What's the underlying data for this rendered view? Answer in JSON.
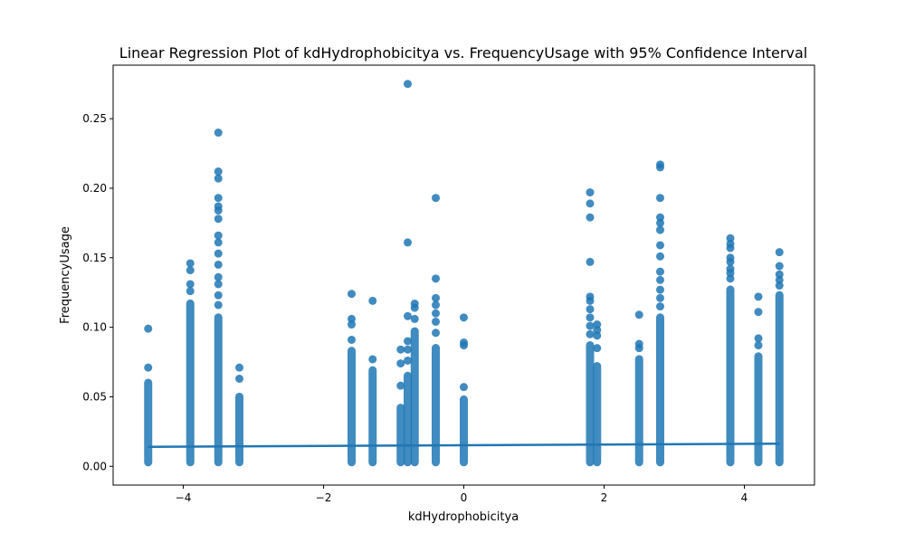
{
  "chart_data": {
    "type": "scatter",
    "title": "Linear Regression Plot of kdHydrophobicitya vs. FrequencyUsage with 95% Confidence Interval",
    "xlabel": "kdHydrophobicitya",
    "ylabel": "FrequencyUsage",
    "xlim": [
      -5.0,
      5.0
    ],
    "ylim": [
      -0.0135,
      0.2885
    ],
    "grid": false,
    "legend": "none",
    "x_ticks": [
      -4,
      -2,
      0,
      2,
      4
    ],
    "x_tick_labels": [
      "−4",
      "−2",
      "0",
      "2",
      "4"
    ],
    "y_ticks": [
      0.0,
      0.05,
      0.1,
      0.15,
      0.2,
      0.25
    ],
    "y_tick_labels": [
      "0.00",
      "0.05",
      "0.10",
      "0.15",
      "0.20",
      "0.25"
    ],
    "point_color": "#1f77b4",
    "columns": [
      {
        "x": -4.5,
        "dense_max": 0.063,
        "outliers": [
          0.071,
          0.099
        ]
      },
      {
        "x": -3.9,
        "dense_max": 0.12,
        "outliers": [
          0.126,
          0.131,
          0.141,
          0.146
        ]
      },
      {
        "x": -3.5,
        "dense_max": 0.11,
        "outliers": [
          0.116,
          0.123,
          0.131,
          0.136,
          0.145,
          0.153,
          0.161,
          0.166,
          0.178,
          0.184,
          0.187,
          0.193,
          0.207,
          0.212,
          0.24
        ]
      },
      {
        "x": -3.2,
        "dense_max": 0.053,
        "outliers": [
          0.063,
          0.071
        ]
      },
      {
        "x": -1.6,
        "dense_max": 0.086,
        "outliers": [
          0.091,
          0.102,
          0.106,
          0.124
        ]
      },
      {
        "x": -1.3,
        "dense_max": 0.072,
        "outliers": [
          0.077,
          0.119
        ]
      },
      {
        "x": -0.9,
        "dense_max": 0.045,
        "outliers": [
          0.058,
          0.074,
          0.084
        ]
      },
      {
        "x": -0.8,
        "dense_max": 0.068,
        "outliers": [
          0.076,
          0.084,
          0.09,
          0.108,
          0.161,
          0.275
        ]
      },
      {
        "x": -0.7,
        "dense_max": 0.1,
        "outliers": [
          0.106,
          0.114,
          0.117
        ]
      },
      {
        "x": -0.4,
        "dense_max": 0.088,
        "outliers": [
          0.096,
          0.104,
          0.11,
          0.116,
          0.121,
          0.135,
          0.193
        ]
      },
      {
        "x": 0.0,
        "dense_max": 0.051,
        "outliers": [
          0.057,
          0.087,
          0.089,
          0.107
        ]
      },
      {
        "x": 1.8,
        "dense_max": 0.09,
        "outliers": [
          0.095,
          0.101,
          0.107,
          0.113,
          0.119,
          0.122,
          0.147,
          0.179,
          0.189,
          0.197
        ]
      },
      {
        "x": 1.9,
        "dense_max": 0.075,
        "outliers": [
          0.085,
          0.094,
          0.098,
          0.102
        ]
      },
      {
        "x": 2.5,
        "dense_max": 0.08,
        "outliers": [
          0.085,
          0.088,
          0.109
        ]
      },
      {
        "x": 2.8,
        "dense_max": 0.11,
        "outliers": [
          0.115,
          0.121,
          0.127,
          0.134,
          0.14,
          0.151,
          0.159,
          0.17,
          0.175,
          0.179,
          0.193,
          0.215,
          0.217
        ]
      },
      {
        "x": 3.8,
        "dense_max": 0.13,
        "outliers": [
          0.135,
          0.139,
          0.142,
          0.147,
          0.15,
          0.157,
          0.16,
          0.164
        ]
      },
      {
        "x": 4.2,
        "dense_max": 0.082,
        "outliers": [
          0.087,
          0.092,
          0.111,
          0.122
        ]
      },
      {
        "x": 4.5,
        "dense_max": 0.126,
        "outliers": [
          0.13,
          0.134,
          0.138,
          0.144,
          0.154
        ]
      }
    ],
    "regression_line": {
      "x": [
        -4.5,
        4.5
      ],
      "y": [
        0.014,
        0.0163
      ]
    }
  }
}
